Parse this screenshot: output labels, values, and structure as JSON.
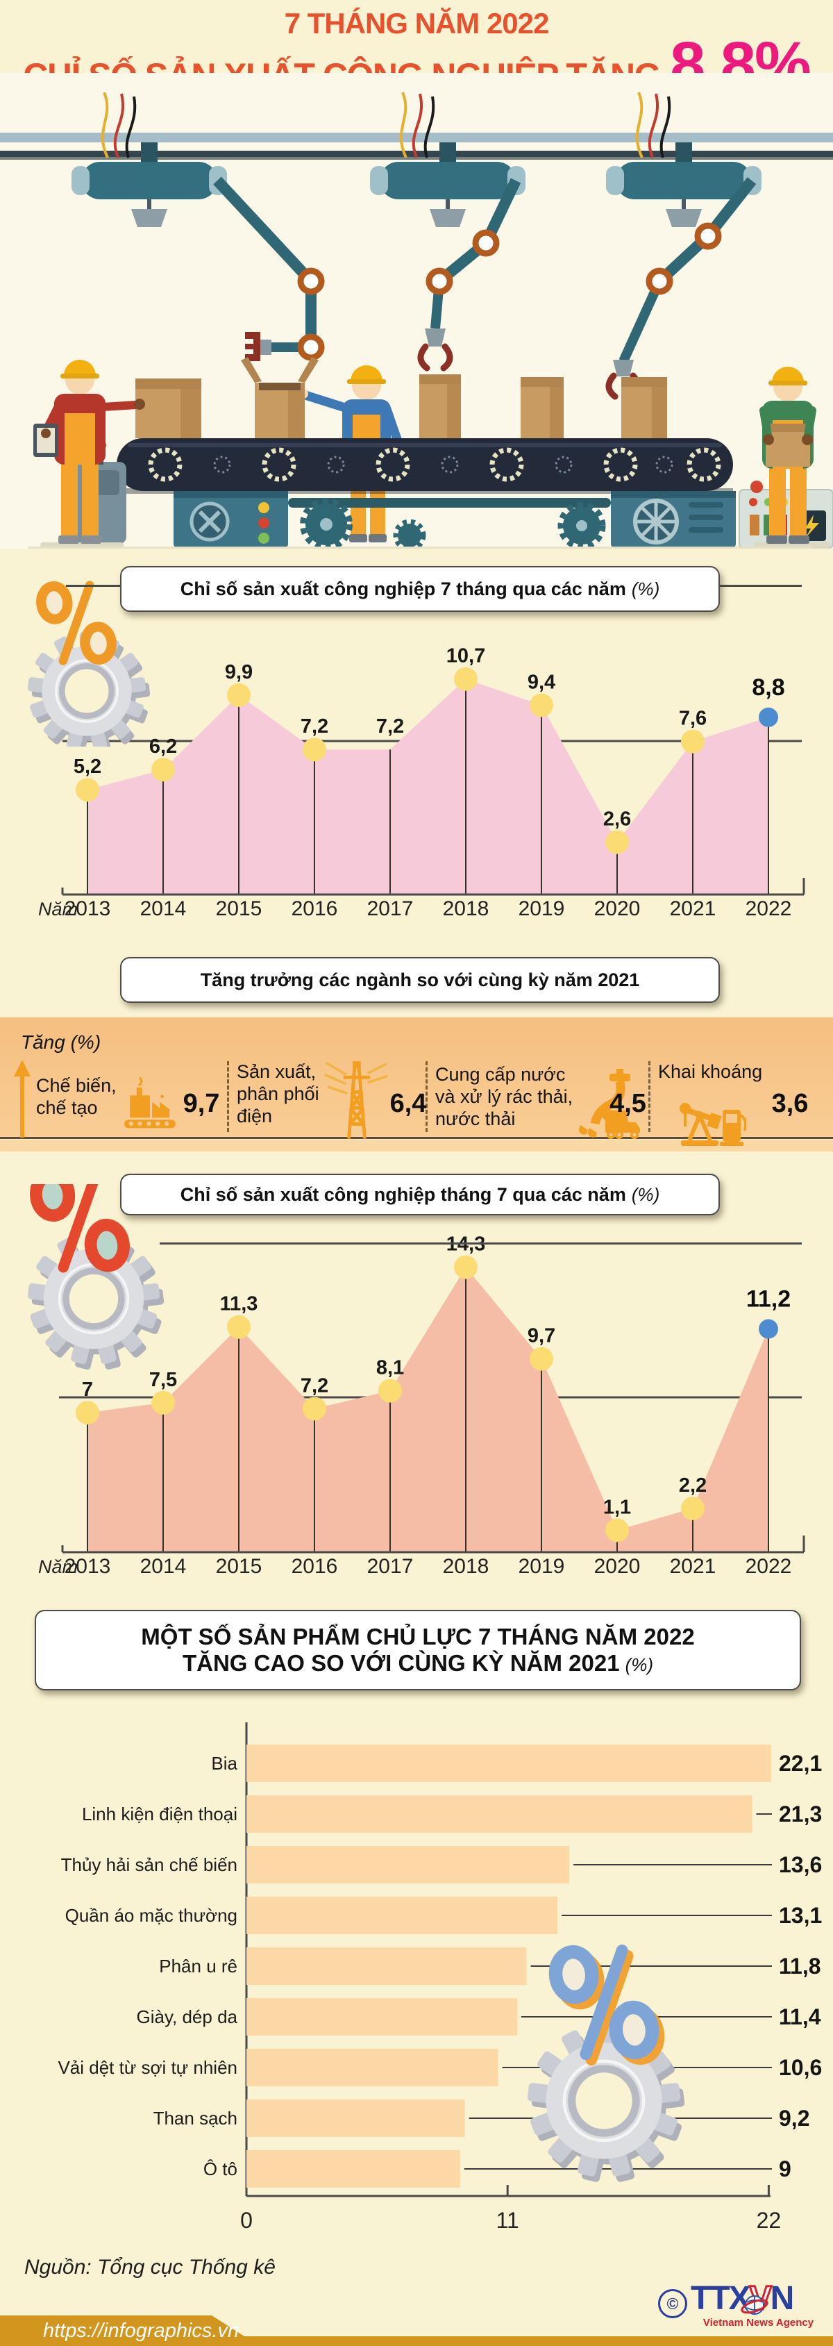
{
  "header": {
    "kicker": "7 THÁNG NĂM 2022",
    "title": "CHỈ SỐ SẢN XUẤT CÔNG NGHIỆP TĂNG",
    "highlight": "8,8%"
  },
  "sections": {
    "seven_months_title": "Chỉ số sản xuất công nghiệp 7 tháng qua các năm",
    "seven_months_suffix": "(%)",
    "growth_title": "Tăng trưởng các ngành so với cùng kỳ năm 2021",
    "july_title": "Chỉ số sản xuất công nghiệp tháng 7 qua các năm",
    "july_suffix": "(%)",
    "products_title_line1": "MỘT SỐ SẢN PHẨM CHỦ LỰC 7 THÁNG NĂM 2022",
    "products_title_line2": "TĂNG CAO SO VỚI CÙNG KỲ NĂM 2021",
    "products_suffix": "(%)"
  },
  "growth": {
    "axis_label": "Tăng (%)",
    "items": [
      {
        "label": "Chế biến, chế tạo",
        "value": "9,7",
        "icon": "factory-icon"
      },
      {
        "label": "Sản xuất, phân phối điện",
        "value": "6,4",
        "icon": "power-tower-icon"
      },
      {
        "label": "Cung cấp nước và xử lý rác thải, nước thải",
        "value": "4,5",
        "icon": "water-waste-icon"
      },
      {
        "label": "Khai khoáng",
        "value": "3,6",
        "icon": "mining-icon"
      }
    ]
  },
  "footer": {
    "source": "Nguồn: Tổng cục Thống kê",
    "url": "https://infographics.vn",
    "copyright": "©",
    "logo_part1": "TTX",
    "logo_part2": "V",
    "logo_part3": "N",
    "logo_subtitle": "Vietnam News Agency"
  },
  "colors": {
    "accent_orange": "#E8512C",
    "accent_pink": "#EC1A7E",
    "area1_fill": "#F7CAD9",
    "area2_fill": "#F5BCA6",
    "dot_yellow": "#FBDC72",
    "dot_blue": "#4E8CD0",
    "bar_fill": "#FBD8A5",
    "band_icon_orange": "#F29E20",
    "footer_gold": "#D2961F"
  },
  "chart_data": [
    {
      "type": "area",
      "title": "Chỉ số sản xuất công nghiệp 7 tháng qua các năm (%)",
      "xlabel": "Năm",
      "categories": [
        "2013",
        "2014",
        "2015",
        "2016",
        "2017",
        "2018",
        "2019",
        "2020",
        "2021",
        "2022"
      ],
      "values": [
        5.2,
        6.2,
        9.9,
        7.2,
        7.2,
        10.7,
        9.4,
        2.6,
        7.6,
        8.8
      ],
      "value_labels": [
        "5,2",
        "6,2",
        "9,9",
        "7,2",
        "7,2",
        "10,7",
        "9,4",
        "2,6",
        "7,6",
        "8,8"
      ],
      "highlight_last": true,
      "ylim": [
        0,
        12
      ],
      "grid": false,
      "legend": "none"
    },
    {
      "type": "area",
      "title": "Chỉ số sản xuất công nghiệp tháng 7 qua các năm (%)",
      "xlabel": "Năm",
      "categories": [
        "2013",
        "2014",
        "2015",
        "2016",
        "2017",
        "2018",
        "2019",
        "2020",
        "2021",
        "2022"
      ],
      "values": [
        7,
        7.5,
        11.3,
        7.2,
        8.1,
        14.3,
        9.7,
        1.1,
        2.2,
        11.2
      ],
      "value_labels": [
        "7",
        "7,5",
        "11,3",
        "7,2",
        "8,1",
        "14,3",
        "9,7",
        "1,1",
        "2,2",
        "11,2"
      ],
      "highlight_last": true,
      "ylim": [
        0,
        16
      ],
      "grid": false,
      "legend": "none"
    },
    {
      "type": "bar",
      "orientation": "horizontal",
      "title": "Một số sản phẩm chủ lực 7 tháng năm 2022 tăng cao so với cùng kỳ năm 2021 (%)",
      "categories": [
        "Bia",
        "Linh kiện điện thoại",
        "Thủy hải sản chế biến",
        "Quần áo mặc thường",
        "Phân u rê",
        "Giày, dép da",
        "Vải dệt từ sợi tự nhiên",
        "Than sạch",
        "Ô tô"
      ],
      "values": [
        22.1,
        21.3,
        13.6,
        13.1,
        11.8,
        11.4,
        10.6,
        9.2,
        9
      ],
      "value_labels": [
        "22,1",
        "21,3",
        "13,6",
        "13,1",
        "11,8",
        "11,4",
        "10,6",
        "9,2",
        "9"
      ],
      "x_ticks": [
        "0",
        "11",
        "22"
      ],
      "xlim": [
        0,
        22
      ],
      "grid": false,
      "legend": "none"
    }
  ]
}
